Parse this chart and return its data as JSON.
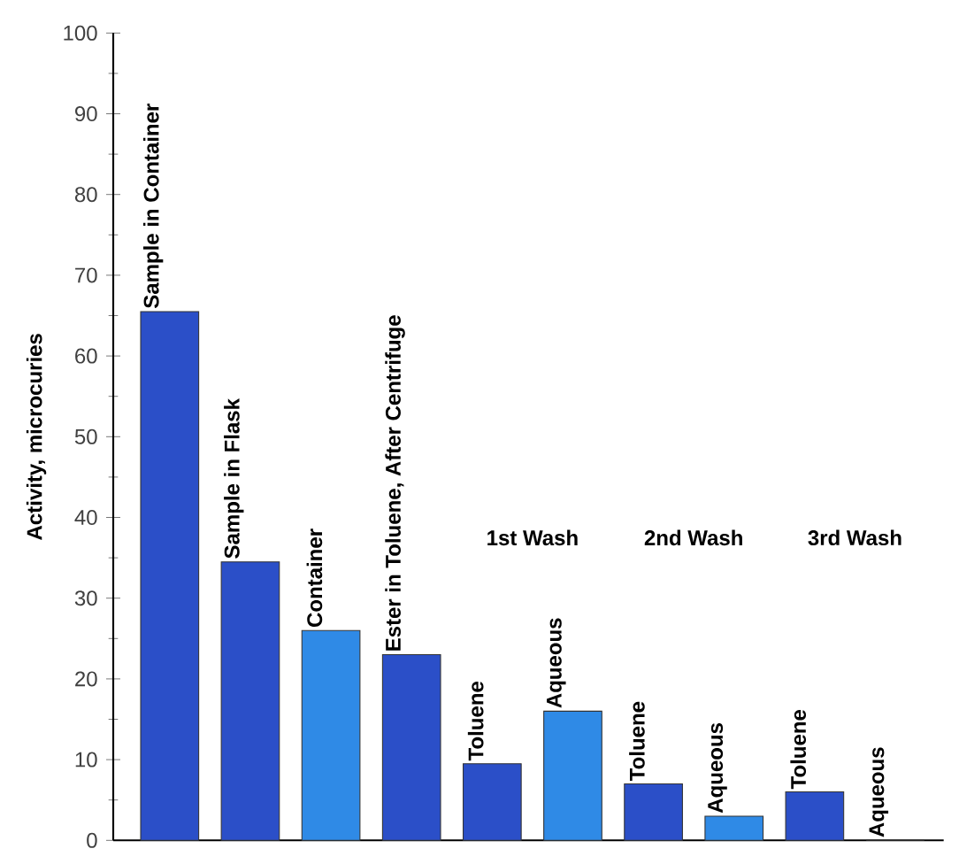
{
  "chart_data": {
    "type": "bar",
    "ylabel": "Activity, microcuries",
    "categories": [
      "Sample in Container",
      "Sample in Flask",
      "Container",
      "Ester in Toluene, After Centrifuge",
      "Toluene",
      "Aqueous",
      "Toluene",
      "Aqueous",
      "Toluene",
      "Aqueous"
    ],
    "values": [
      65.5,
      34.5,
      26,
      23,
      9.5,
      16,
      7,
      3,
      6,
      0
    ],
    "colors": [
      "#2b4fc8",
      "#2b4fc8",
      "#2f8ae6",
      "#2b4fc8",
      "#2b4fc8",
      "#2f8ae6",
      "#2b4fc8",
      "#2f8ae6",
      "#2b4fc8",
      "#2f8ae6"
    ],
    "annotations": [
      "1st Wash",
      "2nd Wash",
      "3rd Wash"
    ],
    "ylim": [
      0,
      100
    ],
    "yticks": [
      0,
      10,
      20,
      30,
      40,
      50,
      60,
      70,
      80,
      90,
      100
    ],
    "grid": false
  }
}
